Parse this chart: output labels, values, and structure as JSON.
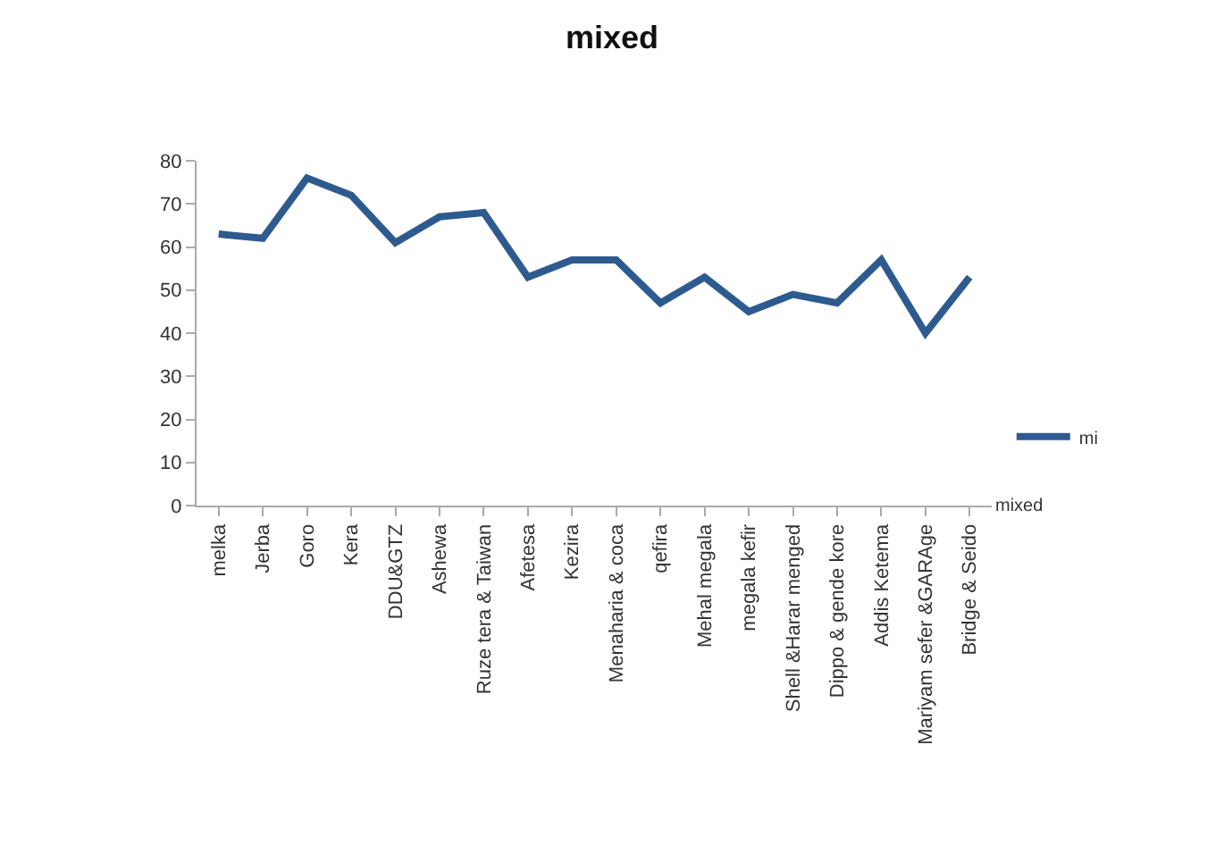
{
  "chart_data": {
    "type": "line",
    "title": "mixed",
    "categories": [
      "melka",
      "Jerba",
      "Goro",
      "Kera",
      "DDU&GTZ",
      "Ashewa",
      "Ruze tera & Taiwan",
      "Afetesa",
      "Kezira",
      "Menaharia & coca",
      "qefira",
      "Mehal megala",
      "megala kefir",
      "Shell &Harar menged",
      "Dippo & gende kore",
      "Addis Ketema",
      "Mariyam sefer &GARAge",
      "Bridge & Seido"
    ],
    "series": [
      {
        "name": "mi",
        "color": "#2e5b8f",
        "values": [
          63,
          62,
          76,
          72,
          61,
          67,
          68,
          53,
          57,
          57,
          47,
          53,
          45,
          49,
          47,
          57,
          40,
          53
        ]
      }
    ],
    "ylim": [
      0,
      80
    ],
    "yticks": [
      0,
      10,
      20,
      30,
      40,
      50,
      60,
      70,
      80
    ],
    "grid": false,
    "legend": "right",
    "marker": "none",
    "line_style": "solid",
    "annotations": [
      "mixed"
    ]
  }
}
